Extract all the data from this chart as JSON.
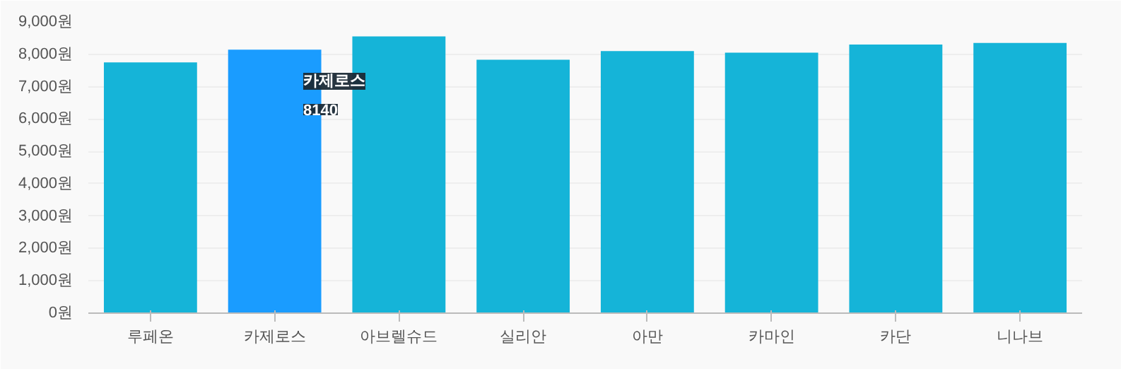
{
  "chart_data": {
    "type": "bar",
    "categories": [
      "루페온",
      "카제로스",
      "아브렐슈드",
      "실리안",
      "아만",
      "카마인",
      "카단",
      "니나브"
    ],
    "values": [
      7750,
      8140,
      8550,
      7830,
      8100,
      8050,
      8300,
      8350
    ],
    "colors": [
      "#15b4d8",
      "#1a9cff",
      "#15b4d8",
      "#15b4d8",
      "#15b4d8",
      "#15b4d8",
      "#15b4d8",
      "#15b4d8"
    ],
    "ylim": [
      0,
      9000
    ],
    "yticks": [
      {
        "value": 0,
        "label": "0원"
      },
      {
        "value": 1000,
        "label": "1,000원"
      },
      {
        "value": 2000,
        "label": "2,000원"
      },
      {
        "value": 3000,
        "label": "3,000원"
      },
      {
        "value": 4000,
        "label": "4,000원"
      },
      {
        "value": 5000,
        "label": "5,000원"
      },
      {
        "value": 6000,
        "label": "6,000원"
      },
      {
        "value": 7000,
        "label": "7,000원"
      },
      {
        "value": 8000,
        "label": "8,000원"
      },
      {
        "value": 9000,
        "label": "9,000원"
      }
    ],
    "grid": "y",
    "annotations": [
      "카제로스",
      "8140"
    ]
  }
}
